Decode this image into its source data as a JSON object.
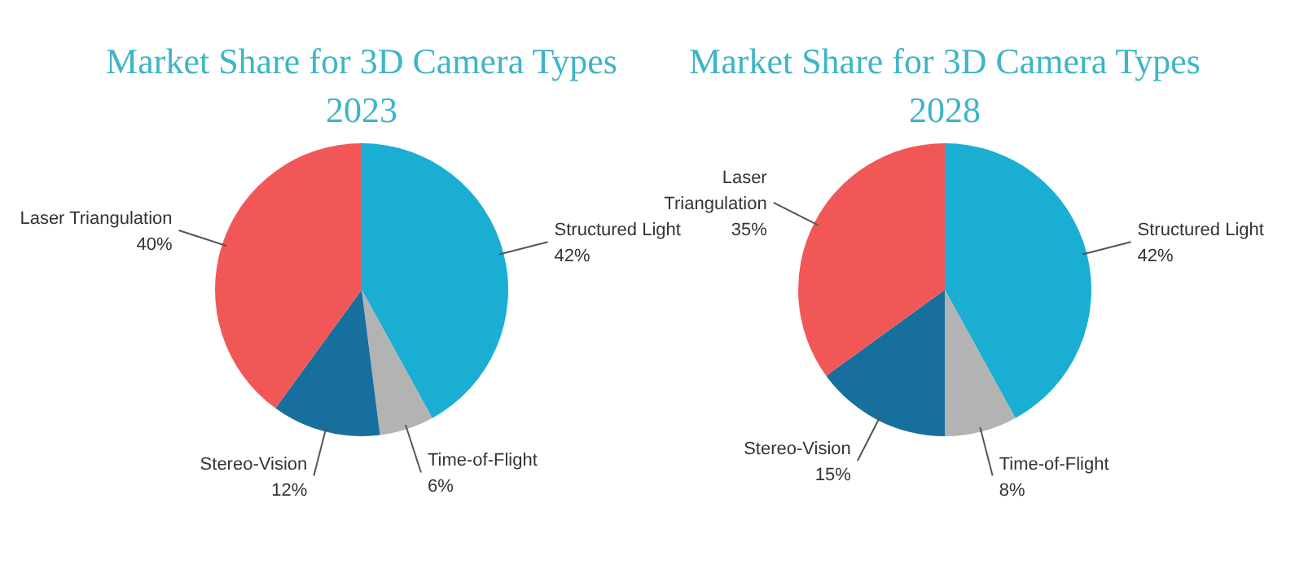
{
  "chart_data": [
    {
      "type": "pie",
      "title": "Market Share for 3D Camera Types",
      "subtitle": "2023",
      "categories": [
        "Structured Light",
        "Time-of-Flight",
        "Stereo-Vision",
        "Laser Triangulation"
      ],
      "values": [
        42,
        6,
        12,
        40
      ],
      "value_labels": [
        "42%",
        "6%",
        "12%",
        "40%"
      ],
      "colors": [
        "#1aaed3",
        "#b3b3b3",
        "#166f9c",
        "#f25757"
      ]
    },
    {
      "type": "pie",
      "title": "Market Share for 3D Camera Types",
      "subtitle": "2028",
      "categories": [
        "Structured Light",
        "Time-of-Flight",
        "Stereo-Vision",
        "Laser Triangulation"
      ],
      "values": [
        42,
        8,
        15,
        35
      ],
      "value_labels": [
        "42%",
        "8%",
        "15%",
        "35%"
      ],
      "colors": [
        "#1aaed3",
        "#b3b3b3",
        "#166f9c",
        "#f25757"
      ]
    }
  ]
}
